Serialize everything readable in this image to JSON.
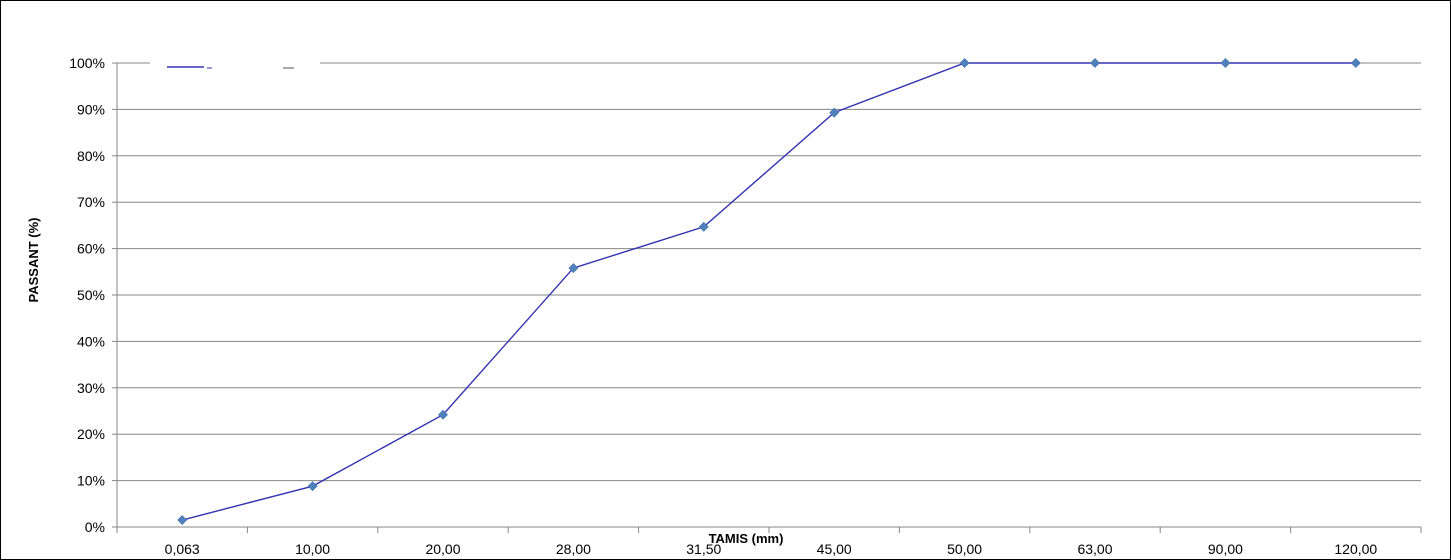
{
  "chart_data": {
    "type": "line",
    "title": "",
    "xlabel": "TAMIS (mm)",
    "ylabel": "PASSANT (%)",
    "categories": [
      "0,063",
      "10,00",
      "20,00",
      "28,00",
      "31,50",
      "45,00",
      "50,00",
      "63,00",
      "90,00",
      "120,00"
    ],
    "y_tick_labels": [
      "0%",
      "10%",
      "20%",
      "30%",
      "40%",
      "50%",
      "60%",
      "70%",
      "80%",
      "90%",
      "100%"
    ],
    "ylim": [
      0,
      100
    ],
    "grid": "horizontal",
    "legend": "top-left",
    "series": [
      {
        "values": [
          1.5,
          8.8,
          24.2,
          55.8,
          64.7,
          89.3,
          100,
          100,
          100,
          100
        ],
        "line_color": "#3333b3",
        "marker_color": "#4f81bd",
        "marker": "diamond"
      }
    ],
    "colors": {
      "gridline": "#868686",
      "axis": "#868686",
      "frame": "#000000"
    }
  }
}
